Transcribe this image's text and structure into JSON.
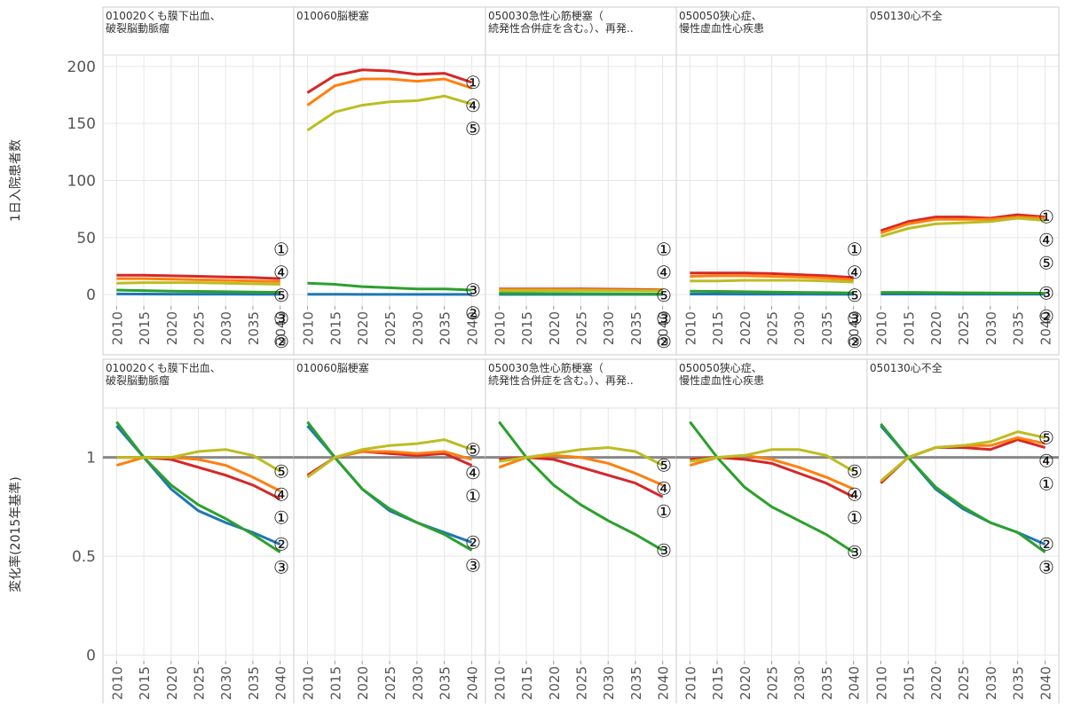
{
  "chart_data": [
    {
      "type": "line",
      "y_label": "1日入院患者数",
      "ylim": [
        -10,
        210
      ],
      "yticks": [
        0,
        50,
        100,
        150,
        200
      ],
      "grid": true,
      "x": [
        2010,
        2015,
        2020,
        2025,
        2030,
        2035,
        2040
      ],
      "xlim": [
        2007.5,
        2042.5
      ],
      "panels": [
        {
          "title": [
            "010020くも膜下出血、",
            "破裂脳動脈瘤"
          ],
          "series": [
            {
              "name": "①",
              "color": "#d62728",
              "values": [
                17,
                17,
                16.5,
                16,
                15.5,
                15,
                14
              ]
            },
            {
              "name": "②",
              "color": "#1f77b4",
              "values": [
                0.6,
                0.5,
                0.4,
                0.4,
                0.4,
                0.3,
                0.3
              ]
            },
            {
              "name": "③",
              "color": "#2ca02c",
              "values": [
                4,
                3.5,
                3,
                2.8,
                2.5,
                2.2,
                2
              ]
            },
            {
              "name": "④",
              "color": "#ff7f0e",
              "values": [
                14,
                14,
                13.5,
                13,
                12.5,
                12,
                11.5
              ]
            },
            {
              "name": "⑤",
              "color": "#bcbd22",
              "values": [
                10,
                10.5,
                10.5,
                10.5,
                10,
                9.5,
                9
              ]
            }
          ]
        },
        {
          "title": [
            "010060脳梗塞"
          ],
          "series": [
            {
              "name": "①",
              "color": "#d62728",
              "values": [
                177,
                192,
                197,
                196,
                193,
                194,
                186
              ]
            },
            {
              "name": "②",
              "color": "#1f77b4",
              "values": [
                0.3,
                0.3,
                0.2,
                0.2,
                0.2,
                0.2,
                0.2
              ]
            },
            {
              "name": "③",
              "color": "#2ca02c",
              "values": [
                10,
                9,
                7,
                6,
                5,
                5,
                4
              ]
            },
            {
              "name": "④",
              "color": "#ff7f0e",
              "values": [
                166,
                183,
                189,
                189,
                187,
                189,
                181
              ]
            },
            {
              "name": "⑤",
              "color": "#bcbd22",
              "values": [
                144,
                160,
                166,
                169,
                170,
                174,
                167
              ]
            }
          ]
        },
        {
          "title": [
            "050030急性心筋梗塞（",
            "続発性合併症を含む。）、再発.."
          ],
          "series": [
            {
              "name": "①",
              "color": "#d62728",
              "values": [
                5,
                5,
                5,
                5,
                4.8,
                4.6,
                4.2
              ]
            },
            {
              "name": "②",
              "color": "#1f77b4",
              "values": [
                0.2,
                0.2,
                0.2,
                0.2,
                0.2,
                0.2,
                0.2
              ]
            },
            {
              "name": "③",
              "color": "#2ca02c",
              "values": [
                1.2,
                1.1,
                1,
                0.9,
                0.8,
                0.7,
                0.6
              ]
            },
            {
              "name": "④",
              "color": "#ff7f0e",
              "values": [
                4.5,
                4.5,
                4.5,
                4.4,
                4.2,
                4,
                3.8
              ]
            },
            {
              "name": "⑤",
              "color": "#bcbd22",
              "values": [
                3.5,
                3.5,
                3.6,
                3.7,
                3.6,
                3.5,
                3.3
              ]
            }
          ]
        },
        {
          "title": [
            "050050狭心症、",
            "慢性虚血性心疾患"
          ],
          "series": [
            {
              "name": "①",
              "color": "#d62728",
              "values": [
                19,
                19,
                19,
                18.5,
                17.5,
                16.5,
                15
              ]
            },
            {
              "name": "②",
              "color": "#1f77b4",
              "values": [
                0.5,
                0.5,
                0.4,
                0.4,
                0.4,
                0.3,
                0.3
              ]
            },
            {
              "name": "③",
              "color": "#2ca02c",
              "values": [
                3,
                2.8,
                2.5,
                2.2,
                2,
                1.8,
                1.5
              ]
            },
            {
              "name": "④",
              "color": "#ff7f0e",
              "values": [
                16,
                16.5,
                16.5,
                16,
                15.5,
                14.5,
                13
              ]
            },
            {
              "name": "⑤",
              "color": "#bcbd22",
              "values": [
                12,
                12,
                12.5,
                12.5,
                12.5,
                12,
                11
              ]
            }
          ]
        },
        {
          "title": [
            "050130心不全"
          ],
          "series": [
            {
              "name": "①",
              "color": "#d62728",
              "values": [
                56,
                64,
                68,
                68,
                67,
                70,
                68
              ]
            },
            {
              "name": "②",
              "color": "#1f77b4",
              "values": [
                0.5,
                0.5,
                0.5,
                0.4,
                0.4,
                0.4,
                0.4
              ]
            },
            {
              "name": "③",
              "color": "#2ca02c",
              "values": [
                2,
                2,
                1.8,
                1.6,
                1.5,
                1.4,
                1.3
              ]
            },
            {
              "name": "④",
              "color": "#ff7f0e",
              "values": [
                54,
                62,
                66,
                66,
                66,
                68,
                67
              ]
            },
            {
              "name": "⑤",
              "color": "#bcbd22",
              "values": [
                51,
                58,
                62,
                63,
                64,
                67,
                65
              ]
            }
          ]
        }
      ]
    },
    {
      "type": "line",
      "y_label": "変化率(2015年基準)",
      "ylim": [
        -0.03,
        1.25
      ],
      "yticks": [
        0,
        0.5,
        1
      ],
      "grid": true,
      "reference_line": 1,
      "x": [
        2010,
        2015,
        2020,
        2025,
        2030,
        2035,
        2040
      ],
      "xlim": [
        2007.5,
        2042.5
      ],
      "panels": [
        {
          "title": [
            "010020くも膜下出血、",
            "破裂脳動脈瘤"
          ],
          "series": [
            {
              "name": "①",
              "color": "#d62728",
              "values": [
                1,
                1,
                0.99,
                0.95,
                0.91,
                0.86,
                0.79
              ]
            },
            {
              "name": "②",
              "color": "#1f77b4",
              "values": [
                1.16,
                1,
                0.84,
                0.73,
                0.67,
                0.62,
                0.56
              ]
            },
            {
              "name": "③",
              "color": "#2ca02c",
              "values": [
                1.18,
                1,
                0.86,
                0.76,
                0.69,
                0.61,
                0.52
              ]
            },
            {
              "name": "④",
              "color": "#ff7f0e",
              "values": [
                0.96,
                1,
                1,
                0.99,
                0.96,
                0.9,
                0.83
              ]
            },
            {
              "name": "⑤",
              "color": "#bcbd22",
              "values": [
                1,
                1,
                1,
                1.03,
                1.04,
                1.01,
                0.93
              ]
            }
          ]
        },
        {
          "title": [
            "010060脳梗塞"
          ],
          "series": [
            {
              "name": "①",
              "color": "#d62728",
              "values": [
                0.91,
                1,
                1.03,
                1.02,
                1.01,
                1.02,
                0.96
              ]
            },
            {
              "name": "②",
              "color": "#1f77b4",
              "values": [
                1.16,
                1,
                0.84,
                0.73,
                0.67,
                0.62,
                0.57
              ]
            },
            {
              "name": "③",
              "color": "#2ca02c",
              "values": [
                1.18,
                1,
                0.84,
                0.74,
                0.67,
                0.61,
                0.53
              ]
            },
            {
              "name": "④",
              "color": "#ff7f0e",
              "values": [
                0.9,
                1,
                1.03,
                1.03,
                1.02,
                1.03,
                0.99
              ]
            },
            {
              "name": "⑤",
              "color": "#bcbd22",
              "values": [
                0.9,
                1,
                1.04,
                1.06,
                1.07,
                1.09,
                1.04
              ]
            }
          ]
        },
        {
          "title": [
            "050030急性心筋梗塞（",
            "続発性合併症を含む。）、再発.."
          ],
          "series": [
            {
              "name": "①",
              "color": "#d62728",
              "values": [
                0.99,
                1,
                0.99,
                0.95,
                0.91,
                0.87,
                0.8
              ]
            },
            {
              "name": "③",
              "color": "#2ca02c",
              "values": [
                1.18,
                1,
                0.86,
                0.76,
                0.68,
                0.61,
                0.53
              ]
            },
            {
              "name": "④",
              "color": "#ff7f0e",
              "values": [
                0.95,
                1,
                1.01,
                1,
                0.97,
                0.92,
                0.86
              ]
            },
            {
              "name": "⑤",
              "color": "#bcbd22",
              "values": [
                0.98,
                1,
                1.02,
                1.04,
                1.05,
                1.03,
                0.96
              ]
            }
          ]
        },
        {
          "title": [
            "050050狭心症、",
            "慢性虚血性心疾患"
          ],
          "series": [
            {
              "name": "①",
              "color": "#d62728",
              "values": [
                0.99,
                1,
                0.99,
                0.97,
                0.92,
                0.87,
                0.8
              ]
            },
            {
              "name": "③",
              "color": "#2ca02c",
              "values": [
                1.18,
                1,
                0.85,
                0.75,
                0.68,
                0.61,
                0.52
              ]
            },
            {
              "name": "④",
              "color": "#ff7f0e",
              "values": [
                0.96,
                1,
                1.01,
                0.99,
                0.95,
                0.9,
                0.84
              ]
            },
            {
              "name": "⑤",
              "color": "#bcbd22",
              "values": [
                0.98,
                1,
                1.01,
                1.04,
                1.04,
                1.01,
                0.93
              ]
            }
          ]
        },
        {
          "title": [
            "050130心不全"
          ],
          "series": [
            {
              "name": "①",
              "color": "#d62728",
              "values": [
                0.87,
                1,
                1.05,
                1.05,
                1.04,
                1.09,
                1.05
              ]
            },
            {
              "name": "②",
              "color": "#1f77b4",
              "values": [
                1.16,
                1,
                0.84,
                0.74,
                0.67,
                0.62,
                0.56
              ]
            },
            {
              "name": "③",
              "color": "#2ca02c",
              "values": [
                1.17,
                1,
                0.85,
                0.75,
                0.67,
                0.62,
                0.52
              ]
            },
            {
              "name": "④",
              "color": "#ff7f0e",
              "values": [
                0.88,
                1,
                1.05,
                1.06,
                1.06,
                1.1,
                1.07
              ]
            },
            {
              "name": "⑤",
              "color": "#bcbd22",
              "values": [
                0.88,
                1,
                1.05,
                1.06,
                1.08,
                1.13,
                1.1
              ]
            }
          ]
        }
      ]
    }
  ]
}
